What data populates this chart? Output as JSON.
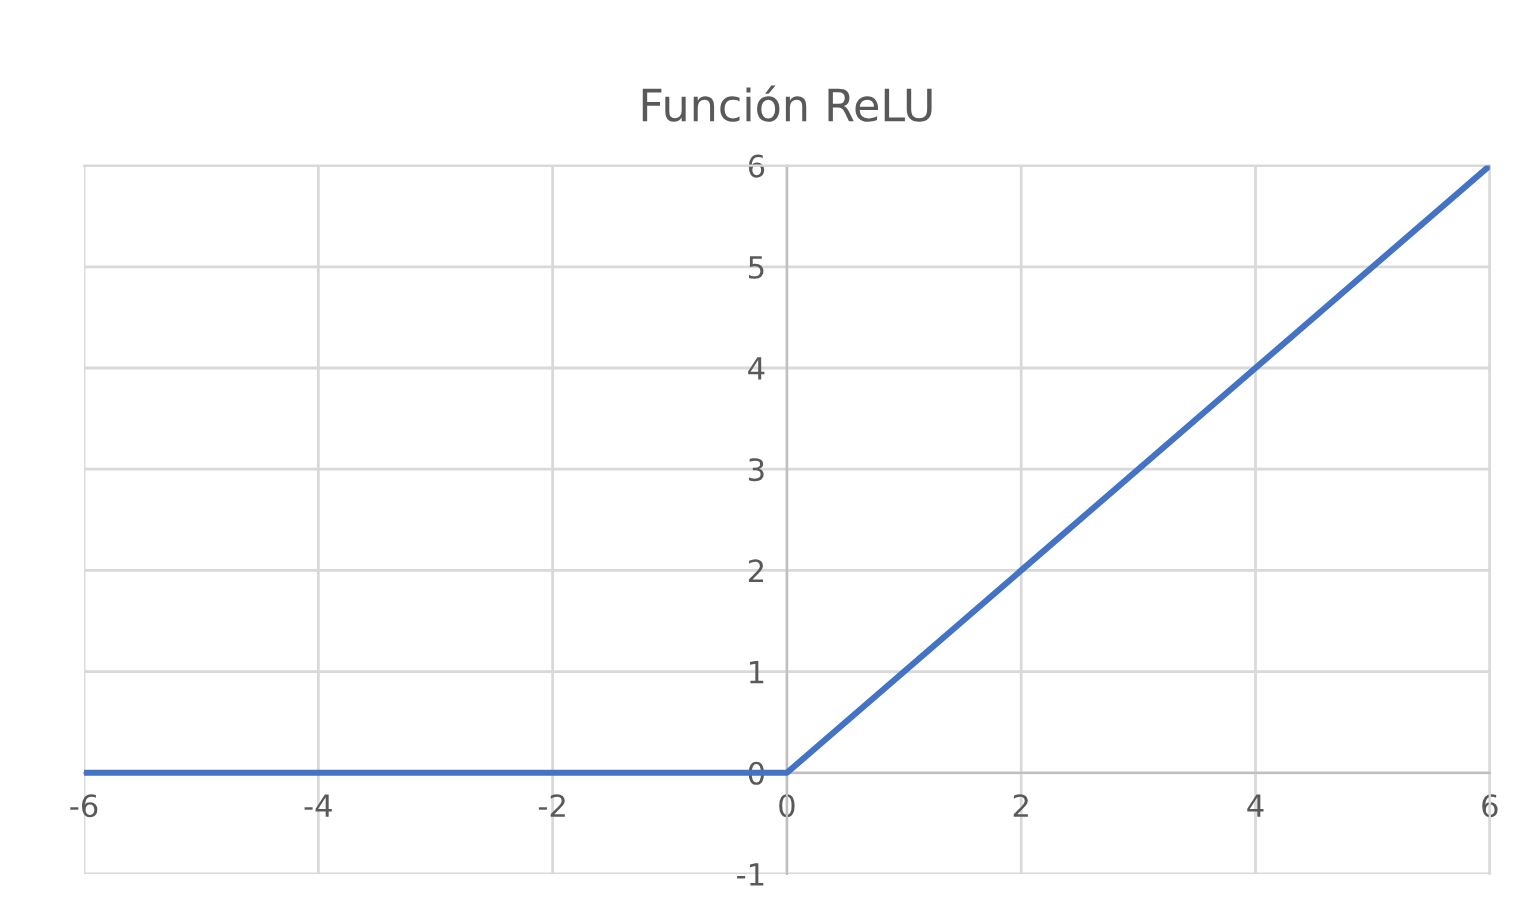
{
  "chart_data": {
    "type": "line",
    "title": "Función ReLU",
    "x": [
      -6,
      0,
      6
    ],
    "series": [
      {
        "color": "#4472c4",
        "values": [
          0,
          0,
          6
        ]
      }
    ],
    "xlim": [
      -6,
      6
    ],
    "xticks": [
      -6,
      -4,
      -2,
      0,
      2,
      4,
      6
    ],
    "ylim": [
      -1,
      6
    ],
    "yticks": [
      -1,
      0,
      1,
      2,
      3,
      4,
      5,
      6
    ],
    "grid": true,
    "marker": "none",
    "line_style": "solid"
  }
}
